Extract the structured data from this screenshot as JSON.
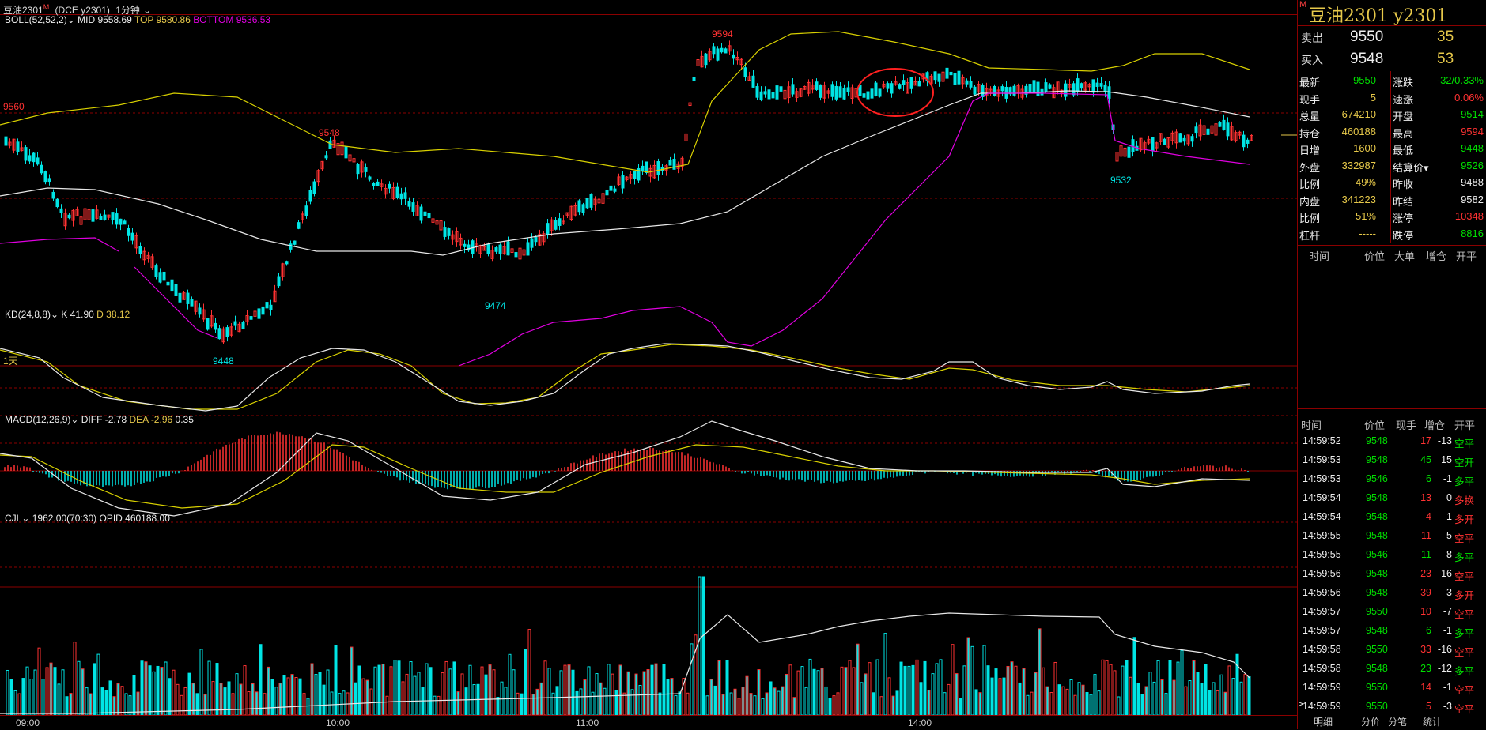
{
  "topbar": {
    "symbol": "豆油2301",
    "badge": "M",
    "exchange": "(DCE y2301)",
    "period": "1分钟"
  },
  "indicators": {
    "boll": {
      "name": "BOLL(52,52,2)",
      "mid": "MID 9558.69",
      "top": "TOP 9580.86",
      "bottom": "BOTTOM 9536.53"
    },
    "kd": {
      "name": "KD(24,8,8)",
      "k": "K 41.90",
      "d": "D 38.12"
    },
    "macd": {
      "name": "MACD(12,26,9)",
      "diff": "DIFF -2.78",
      "dea": "DEA -2.96",
      "macd": "0.35"
    },
    "cjl": {
      "name": "CJL",
      "vol": "1962.00(70:30)",
      "opid": "OPID 460188.00"
    }
  },
  "price_annotations": [
    {
      "label": "9560",
      "color": "#ff3232"
    },
    {
      "label": "9548",
      "color": "#ff3232"
    },
    {
      "label": "9594",
      "color": "#ff3232"
    },
    {
      "label": "9474",
      "color": "#00e5e5"
    },
    {
      "label": "9448",
      "color": "#00e5e5"
    },
    {
      "label": "9532",
      "color": "#00e5e5"
    }
  ],
  "day_label": "1天",
  "x_axis": [
    "09:00",
    "10:00",
    "11:00",
    "14:00"
  ],
  "quote": {
    "title": "豆油2301  y2301",
    "badge": "M",
    "ask_label": "卖出",
    "ask_price": "9550",
    "ask_vol": "35",
    "bid_label": "买入",
    "bid_price": "9548",
    "bid_vol": "53",
    "rows": [
      {
        "k1": "最新",
        "v1": "9550",
        "c1": "green",
        "k2": "涨跌",
        "v2": "-32/0.33%",
        "c2": "green"
      },
      {
        "k1": "现手",
        "v1": "5",
        "c1": "yellow",
        "k2": "速涨",
        "v2": "0.06%",
        "c2": "red"
      },
      {
        "k1": "总量",
        "v1": "674210",
        "c1": "yellow",
        "k2": "开盘",
        "v2": "9514",
        "c2": "green"
      },
      {
        "k1": "持仓",
        "v1": "460188",
        "c1": "yellow",
        "k2": "最高",
        "v2": "9594",
        "c2": "red"
      },
      {
        "k1": "日增",
        "v1": "-1600",
        "c1": "yellow",
        "k2": "最低",
        "v2": "9448",
        "c2": "green"
      },
      {
        "k1": "外盘",
        "v1": "332987",
        "c1": "yellow",
        "k2": "结算价▾",
        "v2": "9526",
        "c2": "green"
      },
      {
        "k1": "比例",
        "v1": "49%",
        "c1": "yellow",
        "k2": "昨收",
        "v2": "9488",
        "c2": "white"
      },
      {
        "k1": "内盘",
        "v1": "341223",
        "c1": "yellow",
        "k2": "昨结",
        "v2": "9582",
        "c2": "white"
      },
      {
        "k1": "比例",
        "v1": "51%",
        "c1": "yellow",
        "k2": "涨停",
        "v2": "10348",
        "c2": "red"
      },
      {
        "k1": "杠杆",
        "v1": "-----",
        "c1": "yellow",
        "k2": "跌停",
        "v2": "8816",
        "c2": "green"
      }
    ]
  },
  "big_order_header": [
    "时间",
    "价位",
    "大单",
    "增仓",
    "开平"
  ],
  "ticks_header": [
    "时间",
    "价位",
    "现手",
    "增仓",
    "开平"
  ],
  "ticks": [
    {
      "t": "14:59:52",
      "p": "9548",
      "v": "17",
      "vc": "red",
      "z": "-13",
      "o": "空平",
      "oc": "green"
    },
    {
      "t": "14:59:53",
      "p": "9548",
      "v": "45",
      "vc": "green",
      "z": "15",
      "o": "空开",
      "oc": "green"
    },
    {
      "t": "14:59:53",
      "p": "9546",
      "v": "6",
      "vc": "green",
      "z": "-1",
      "o": "多平",
      "oc": "green"
    },
    {
      "t": "14:59:54",
      "p": "9548",
      "v": "13",
      "vc": "red",
      "z": "0",
      "o": "多换",
      "oc": "red"
    },
    {
      "t": "14:59:54",
      "p": "9548",
      "v": "4",
      "vc": "red",
      "z": "1",
      "o": "多开",
      "oc": "red"
    },
    {
      "t": "14:59:55",
      "p": "9548",
      "v": "11",
      "vc": "red",
      "z": "-5",
      "o": "空平",
      "oc": "red"
    },
    {
      "t": "14:59:55",
      "p": "9546",
      "v": "11",
      "vc": "green",
      "z": "-8",
      "o": "多平",
      "oc": "green"
    },
    {
      "t": "14:59:56",
      "p": "9548",
      "v": "23",
      "vc": "red",
      "z": "-16",
      "o": "空平",
      "oc": "red"
    },
    {
      "t": "14:59:56",
      "p": "9548",
      "v": "39",
      "vc": "red",
      "z": "3",
      "o": "多开",
      "oc": "red"
    },
    {
      "t": "14:59:57",
      "p": "9550",
      "v": "10",
      "vc": "red",
      "z": "-7",
      "o": "空平",
      "oc": "red"
    },
    {
      "t": "14:59:57",
      "p": "9548",
      "v": "6",
      "vc": "green",
      "z": "-1",
      "o": "多平",
      "oc": "green"
    },
    {
      "t": "14:59:58",
      "p": "9550",
      "v": "33",
      "vc": "red",
      "z": "-16",
      "o": "空平",
      "oc": "red"
    },
    {
      "t": "14:59:58",
      "p": "9548",
      "v": "23",
      "vc": "green",
      "z": "-12",
      "o": "多平",
      "oc": "green"
    },
    {
      "t": "14:59:59",
      "p": "9550",
      "v": "14",
      "vc": "red",
      "z": "-1",
      "o": "空平",
      "oc": "red"
    },
    {
      "t": "14:59:59",
      "p": "9550",
      "v": "5",
      "vc": "red",
      "z": "-3",
      "o": "空平",
      "oc": "red"
    }
  ],
  "bottom_tabs": [
    "明细",
    "分价",
    "分笔",
    "统计"
  ],
  "colors": {
    "up": "#ff3232",
    "down": "#00e5e5",
    "mid": "#e8e8e8",
    "top": "#d8d000",
    "bottom": "#e000e0",
    "grid": "#8b0000"
  }
}
